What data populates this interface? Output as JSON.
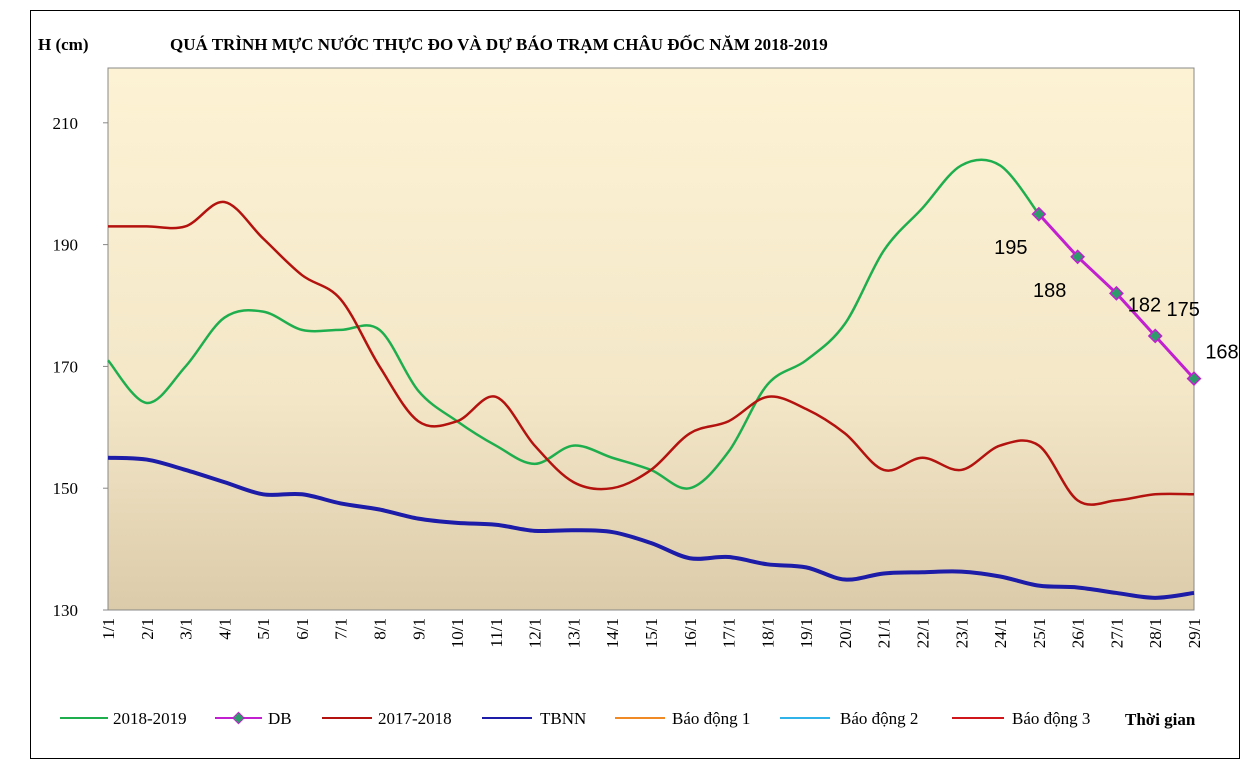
{
  "chart_data": {
    "type": "line",
    "title": "QUÁ TRÌNH MỰC NƯỚC THỰC ĐO VÀ DỰ BÁO TRẠM CHÂU ĐỐC NĂM 2018-2019",
    "y_label": "H (cm)",
    "x_label": "Thời gian",
    "categories": [
      "1/1",
      "2/1",
      "3/1",
      "4/1",
      "5/1",
      "6/1",
      "7/1",
      "8/1",
      "9/1",
      "10/1",
      "11/1",
      "12/1",
      "13/1",
      "14/1",
      "15/1",
      "16/1",
      "17/1",
      "18/1",
      "19/1",
      "20/1",
      "21/1",
      "22/1",
      "23/1",
      "24/1",
      "25/1",
      "26/1",
      "27/1",
      "28/1",
      "29/1"
    ],
    "ylim": [
      130,
      219
    ],
    "yticks": [
      130,
      150,
      170,
      190,
      210
    ],
    "series": [
      {
        "name": "2018-2019",
        "color": "#1fae4e",
        "values": [
          171,
          164,
          170,
          178,
          179,
          176,
          176,
          176,
          166,
          161,
          157,
          154,
          157,
          155,
          153,
          150,
          156,
          167,
          171,
          177,
          189,
          196,
          203,
          203,
          195,
          null,
          null,
          null,
          null
        ]
      },
      {
        "name": "DB",
        "color": "#c21fd0",
        "marker_color": "#2e9b6a",
        "values": [
          null,
          null,
          null,
          null,
          null,
          null,
          null,
          null,
          null,
          null,
          null,
          null,
          null,
          null,
          null,
          null,
          null,
          null,
          null,
          null,
          null,
          null,
          null,
          null,
          195,
          188,
          182,
          175,
          168
        ],
        "value_labels": [
          null,
          null,
          null,
          null,
          null,
          null,
          null,
          null,
          null,
          null,
          null,
          null,
          null,
          null,
          null,
          null,
          null,
          null,
          null,
          null,
          null,
          null,
          null,
          null,
          "195",
          "188",
          "182",
          "175",
          "168"
        ]
      },
      {
        "name": "2017-2018",
        "color": "#b3120e",
        "values": [
          193,
          193,
          193,
          197,
          191,
          185,
          181,
          170,
          161,
          161,
          165,
          157,
          151,
          150,
          153,
          159,
          161,
          165,
          163,
          159,
          153,
          155,
          153,
          157,
          157,
          148,
          148,
          149,
          149
        ]
      },
      {
        "name": "TBNN",
        "color": "#1c1ca8",
        "values": [
          155,
          154.7,
          153,
          151,
          149,
          149,
          147.5,
          146.5,
          145,
          144.3,
          144,
          143,
          143.1,
          142.8,
          141,
          138.5,
          138.7,
          137.5,
          137,
          135,
          136,
          136.2,
          136.3,
          135.5,
          134,
          133.7,
          132.8,
          132,
          132.8
        ]
      },
      {
        "name": "Báo động 1",
        "color": "#f08a24"
      },
      {
        "name": "Báo động 2",
        "color": "#2fb3e8"
      },
      {
        "name": "Báo động 3",
        "color": "#d0161b"
      }
    ]
  }
}
